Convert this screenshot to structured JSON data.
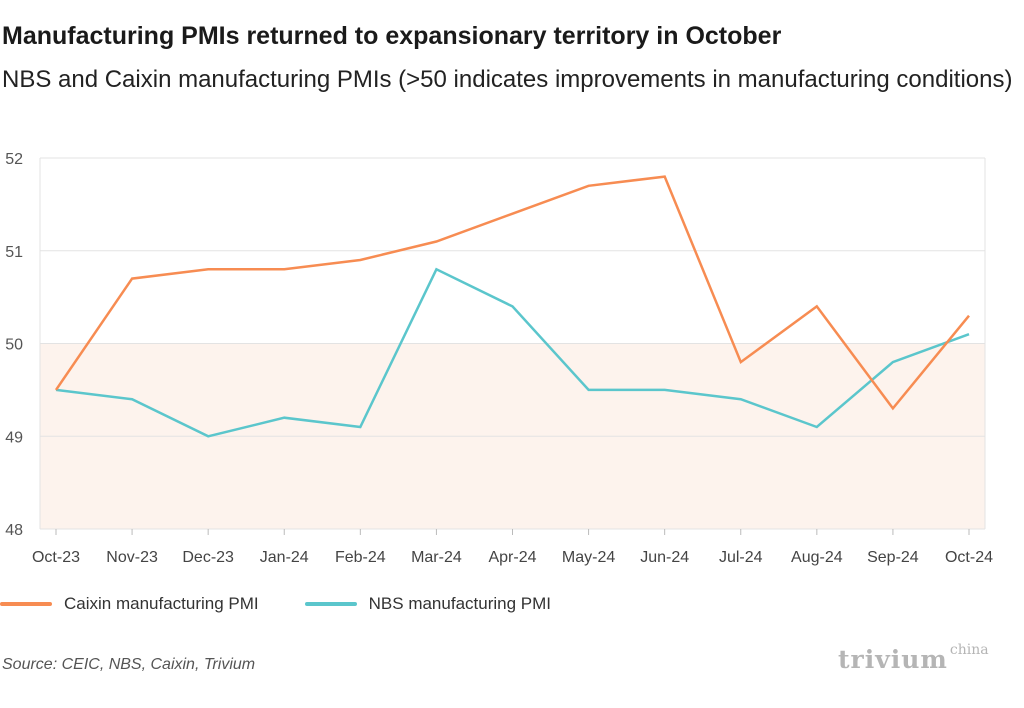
{
  "title": "Manufacturing PMIs returned to expansionary territory in October",
  "subtitle": "NBS and Caixin manufacturing PMIs (>50 indicates improvements in manufacturing conditions)",
  "source": "Source: CEIC, NBS, Caixin, Trivium",
  "logo": {
    "main": "trivium",
    "sup": "china"
  },
  "colors": {
    "caixin": "#f78c52",
    "nbs": "#5bc6cc",
    "shade": "#fdf3ed",
    "grid": "#e3e3e3"
  },
  "chart_data": {
    "type": "line",
    "title": "Manufacturing PMIs returned to expansionary territory in October",
    "categories": [
      "Oct-23",
      "Nov-23",
      "Dec-23",
      "Jan-24",
      "Feb-24",
      "Mar-24",
      "Apr-24",
      "May-24",
      "Jun-24",
      "Jul-24",
      "Aug-24",
      "Sep-24",
      "Oct-24"
    ],
    "series": [
      {
        "name": "Caixin manufacturing PMI",
        "color": "#f78c52",
        "values": [
          49.5,
          50.7,
          50.8,
          50.8,
          50.9,
          51.1,
          51.4,
          51.7,
          51.8,
          49.8,
          50.4,
          49.3,
          50.3
        ]
      },
      {
        "name": "NBS manufacturing PMI",
        "color": "#5bc6cc",
        "values": [
          49.5,
          49.4,
          49.0,
          49.2,
          49.1,
          50.8,
          50.4,
          49.5,
          49.5,
          49.4,
          49.1,
          49.8,
          50.1
        ]
      }
    ],
    "yticks": [
      48,
      49,
      50,
      51,
      52
    ],
    "ylim": [
      48,
      52
    ],
    "shaded_band": [
      48,
      50
    ],
    "grid": true,
    "legend_position": "bottom-left"
  }
}
